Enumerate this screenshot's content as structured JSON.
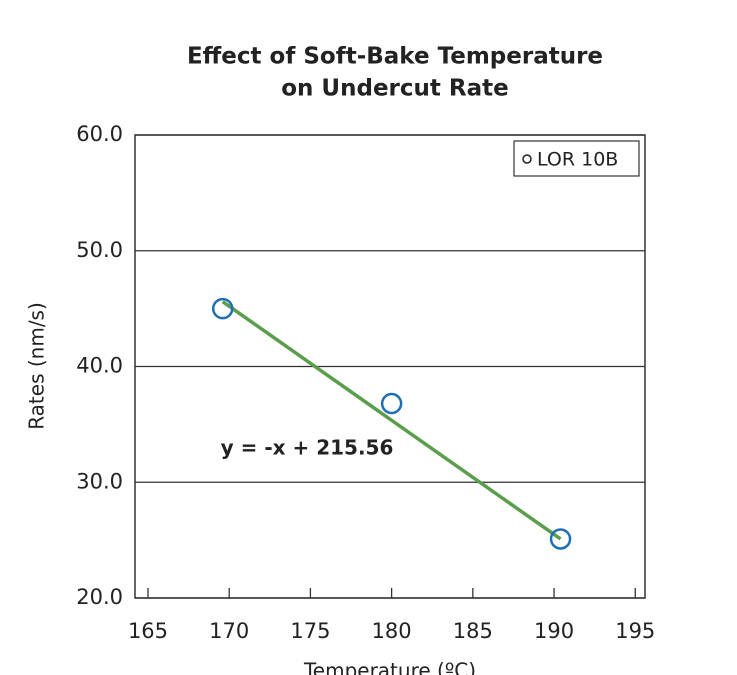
{
  "chart_data": {
    "type": "scatter",
    "title": "Effect of Soft-Bake Temperature",
    "subtitle": "on Undercut Rate",
    "xlabel": "Temperature (ºC)",
    "ylabel": "Rates (nm/s)",
    "series": [
      {
        "name": "LOR 10B",
        "color": "#1f6fb5",
        "x": [
          169.6,
          180,
          190.4
        ],
        "values": [
          45,
          36.8,
          25.1
        ]
      }
    ],
    "trendline": {
      "color": "#5a9e4b",
      "x": [
        169.6,
        190.4
      ],
      "values": [
        45.6,
        25.1
      ]
    },
    "annotation": "y = -x + 215.56",
    "xlim": [
      164.2,
      195.6
    ],
    "xticks": [
      165,
      170,
      175,
      180,
      185,
      190,
      195
    ],
    "ylim": [
      20,
      60
    ],
    "yticks": [
      {
        "value": 20,
        "label": "20.0"
      },
      {
        "value": 30,
        "label": "30.0"
      },
      {
        "value": 40,
        "label": "40.0"
      },
      {
        "value": 50,
        "label": "50.0"
      },
      {
        "value": 60,
        "label": "60.0"
      }
    ],
    "grid": true,
    "legend": "upper right"
  }
}
